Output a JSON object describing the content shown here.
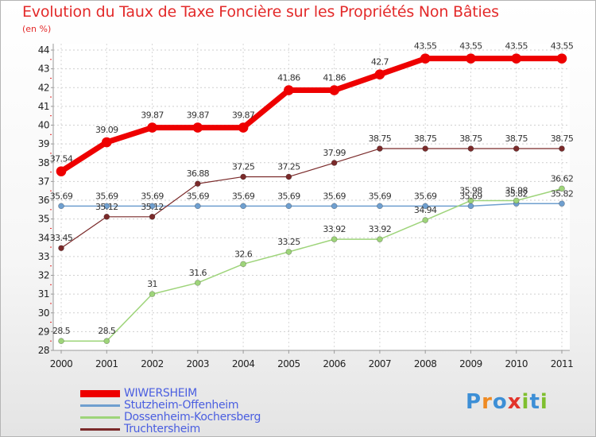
{
  "title": "Evolution du Taux de Taxe Foncière sur les Propriétés Non Bâties",
  "unit_label": "(en %)",
  "logo": {
    "text": "Proxiti",
    "letter_colors": [
      "#3d8fd6",
      "#ef8a22",
      "#3d8fd6",
      "#e2342b",
      "#7fbf2f",
      "#3d8fd6",
      "#7fbf2f"
    ]
  },
  "chart_data": {
    "type": "line",
    "x": [
      "2000",
      "2001",
      "2002",
      "2003",
      "2004",
      "2005",
      "2006",
      "2007",
      "2008",
      "2009",
      "2010",
      "2011"
    ],
    "ylim": [
      28,
      44
    ],
    "y_ticks": [
      "28",
      "29",
      "30",
      "31",
      "32",
      "33",
      "34",
      "35",
      "36",
      "37",
      "38",
      "39",
      "40",
      "41",
      "42",
      "43",
      "44"
    ],
    "grid": true,
    "series": [
      {
        "name": "WIWERSHEIM",
        "color": "#ee0000",
        "values": [
          37.54,
          39.09,
          39.87,
          39.87,
          39.87,
          41.86,
          41.86,
          42.7,
          43.55,
          43.55,
          43.55,
          43.55
        ],
        "labels": [
          "37.54",
          "39.09",
          "39.87",
          "39.87",
          "39.87",
          "41.86",
          "41.86",
          "42.7",
          "43.55",
          "43.55",
          "43.55",
          "43.55"
        ]
      },
      {
        "name": "Stutzheim-Offenheim",
        "color": "#6f9fcf",
        "values": [
          35.69,
          35.69,
          35.69,
          35.69,
          35.69,
          35.69,
          35.69,
          35.69,
          35.69,
          35.69,
          35.82,
          35.82
        ],
        "labels": [
          "35.69",
          "35.69",
          "35.69",
          "35.69",
          "35.69",
          "35.69",
          "35.69",
          "35.69",
          "35.69",
          "35.69",
          "35.82",
          "35.82"
        ]
      },
      {
        "name": "Dossenheim-Kochersberg",
        "color": "#9ed47a",
        "values": [
          28.5,
          28.5,
          31,
          31.6,
          32.6,
          33.25,
          33.92,
          33.92,
          34.94,
          35.98,
          35.98,
          36.62
        ],
        "labels": [
          "28.5",
          "28.5",
          "31",
          "31.6",
          "32.6",
          "33.25",
          "33.92",
          "33.92",
          "34.94",
          "35.98",
          "35.98",
          "36.62"
        ]
      },
      {
        "name": "Truchtersheim",
        "color": "#7a2a2a",
        "values": [
          33.45,
          35.12,
          35.12,
          36.88,
          37.25,
          37.25,
          37.99,
          38.75,
          38.75,
          38.75,
          38.75,
          38.75
        ],
        "labels": [
          "33.45",
          "35.12",
          "35.12",
          "36.88",
          "37.25",
          "37.25",
          "37.99",
          "38.75",
          "38.75",
          "38.75",
          "38.75",
          "38.75"
        ]
      }
    ],
    "legend": {
      "position": "bottom-left"
    }
  }
}
